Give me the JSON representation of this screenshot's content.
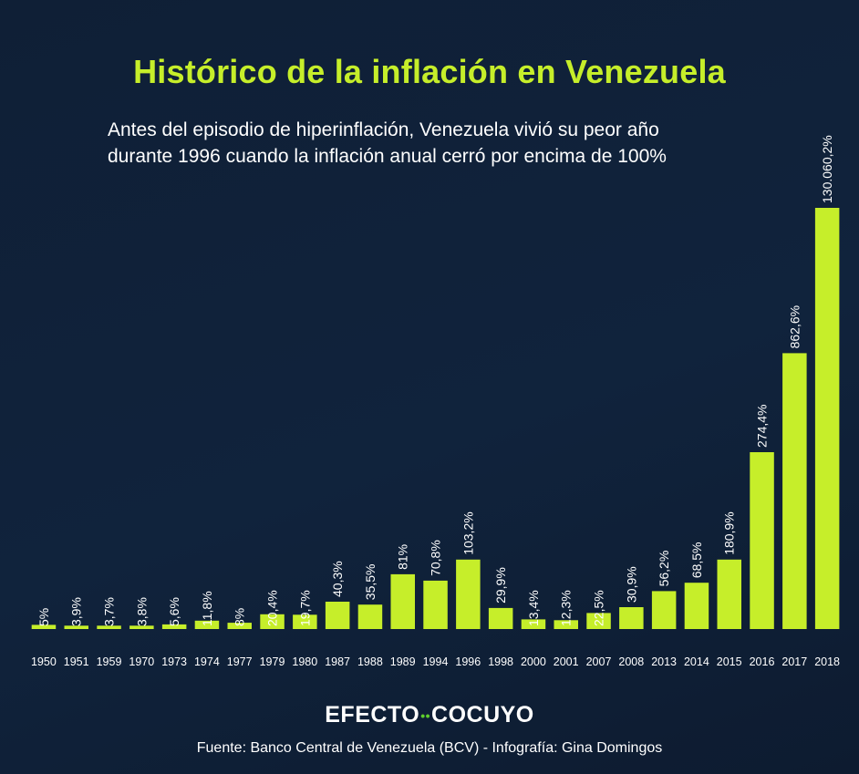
{
  "header": {
    "title": "Histórico de la inflación en Venezuela",
    "subtitle_line1": "Antes del episodio de hiperinflación, Venezuela vivió su peor año",
    "subtitle_line2": "durante 1996 cuando la inflación anual cerró por encima de 100%"
  },
  "footer": {
    "logo_left": "EFECTO",
    "logo_dots": "••",
    "logo_right": "COCUYO",
    "source": "Fuente: Banco Central de Venezuela (BCV) - Infografía: Gina Domingos"
  },
  "colors": {
    "bar": "#c6ee2a",
    "title": "#c6ee2a",
    "text": "#ffffff",
    "background": "#10233c"
  },
  "chart_data": {
    "type": "bar",
    "categories": [
      "1950",
      "1951",
      "1959",
      "1970",
      "1973",
      "1974",
      "1977",
      "1979",
      "1980",
      "1987",
      "1988",
      "1989",
      "1994",
      "1996",
      "1998",
      "2000",
      "2001",
      "2007",
      "2008",
      "2013",
      "2014",
      "2015",
      "2016",
      "2017",
      "2018"
    ],
    "value_labels": [
      "5%",
      "3,9%",
      "3,7%",
      "3,8%",
      "5,6%",
      "11,8%",
      "8%",
      "20,4%",
      "19,7%",
      "40,3%",
      "35,5%",
      "81%",
      "70,8%",
      "103,2%",
      "29,9%",
      "13,4%",
      "12,3%",
      "22,5%",
      "30,9%",
      "56,2%",
      "68,5%",
      "180,9%",
      "274,4%",
      "862,6%",
      "130.060,2%"
    ],
    "values": [
      5,
      3.9,
      3.7,
      3.8,
      5.6,
      11.8,
      8,
      20.4,
      19.7,
      40.3,
      35.5,
      81,
      70.8,
      103.2,
      29.9,
      13.4,
      12.3,
      22.5,
      30.9,
      56.2,
      68.5,
      180.9,
      274.4,
      862.6,
      130060.2
    ],
    "display_levels": [
      0.01,
      0.008,
      0.008,
      0.008,
      0.011,
      0.02,
      0.015,
      0.035,
      0.034,
      0.065,
      0.058,
      0.13,
      0.115,
      0.165,
      0.05,
      0.023,
      0.021,
      0.038,
      0.052,
      0.09,
      0.11,
      0.165,
      0.42,
      0.655,
      1.0
    ],
    "unit": "%",
    "grid": false,
    "legend": "none"
  }
}
